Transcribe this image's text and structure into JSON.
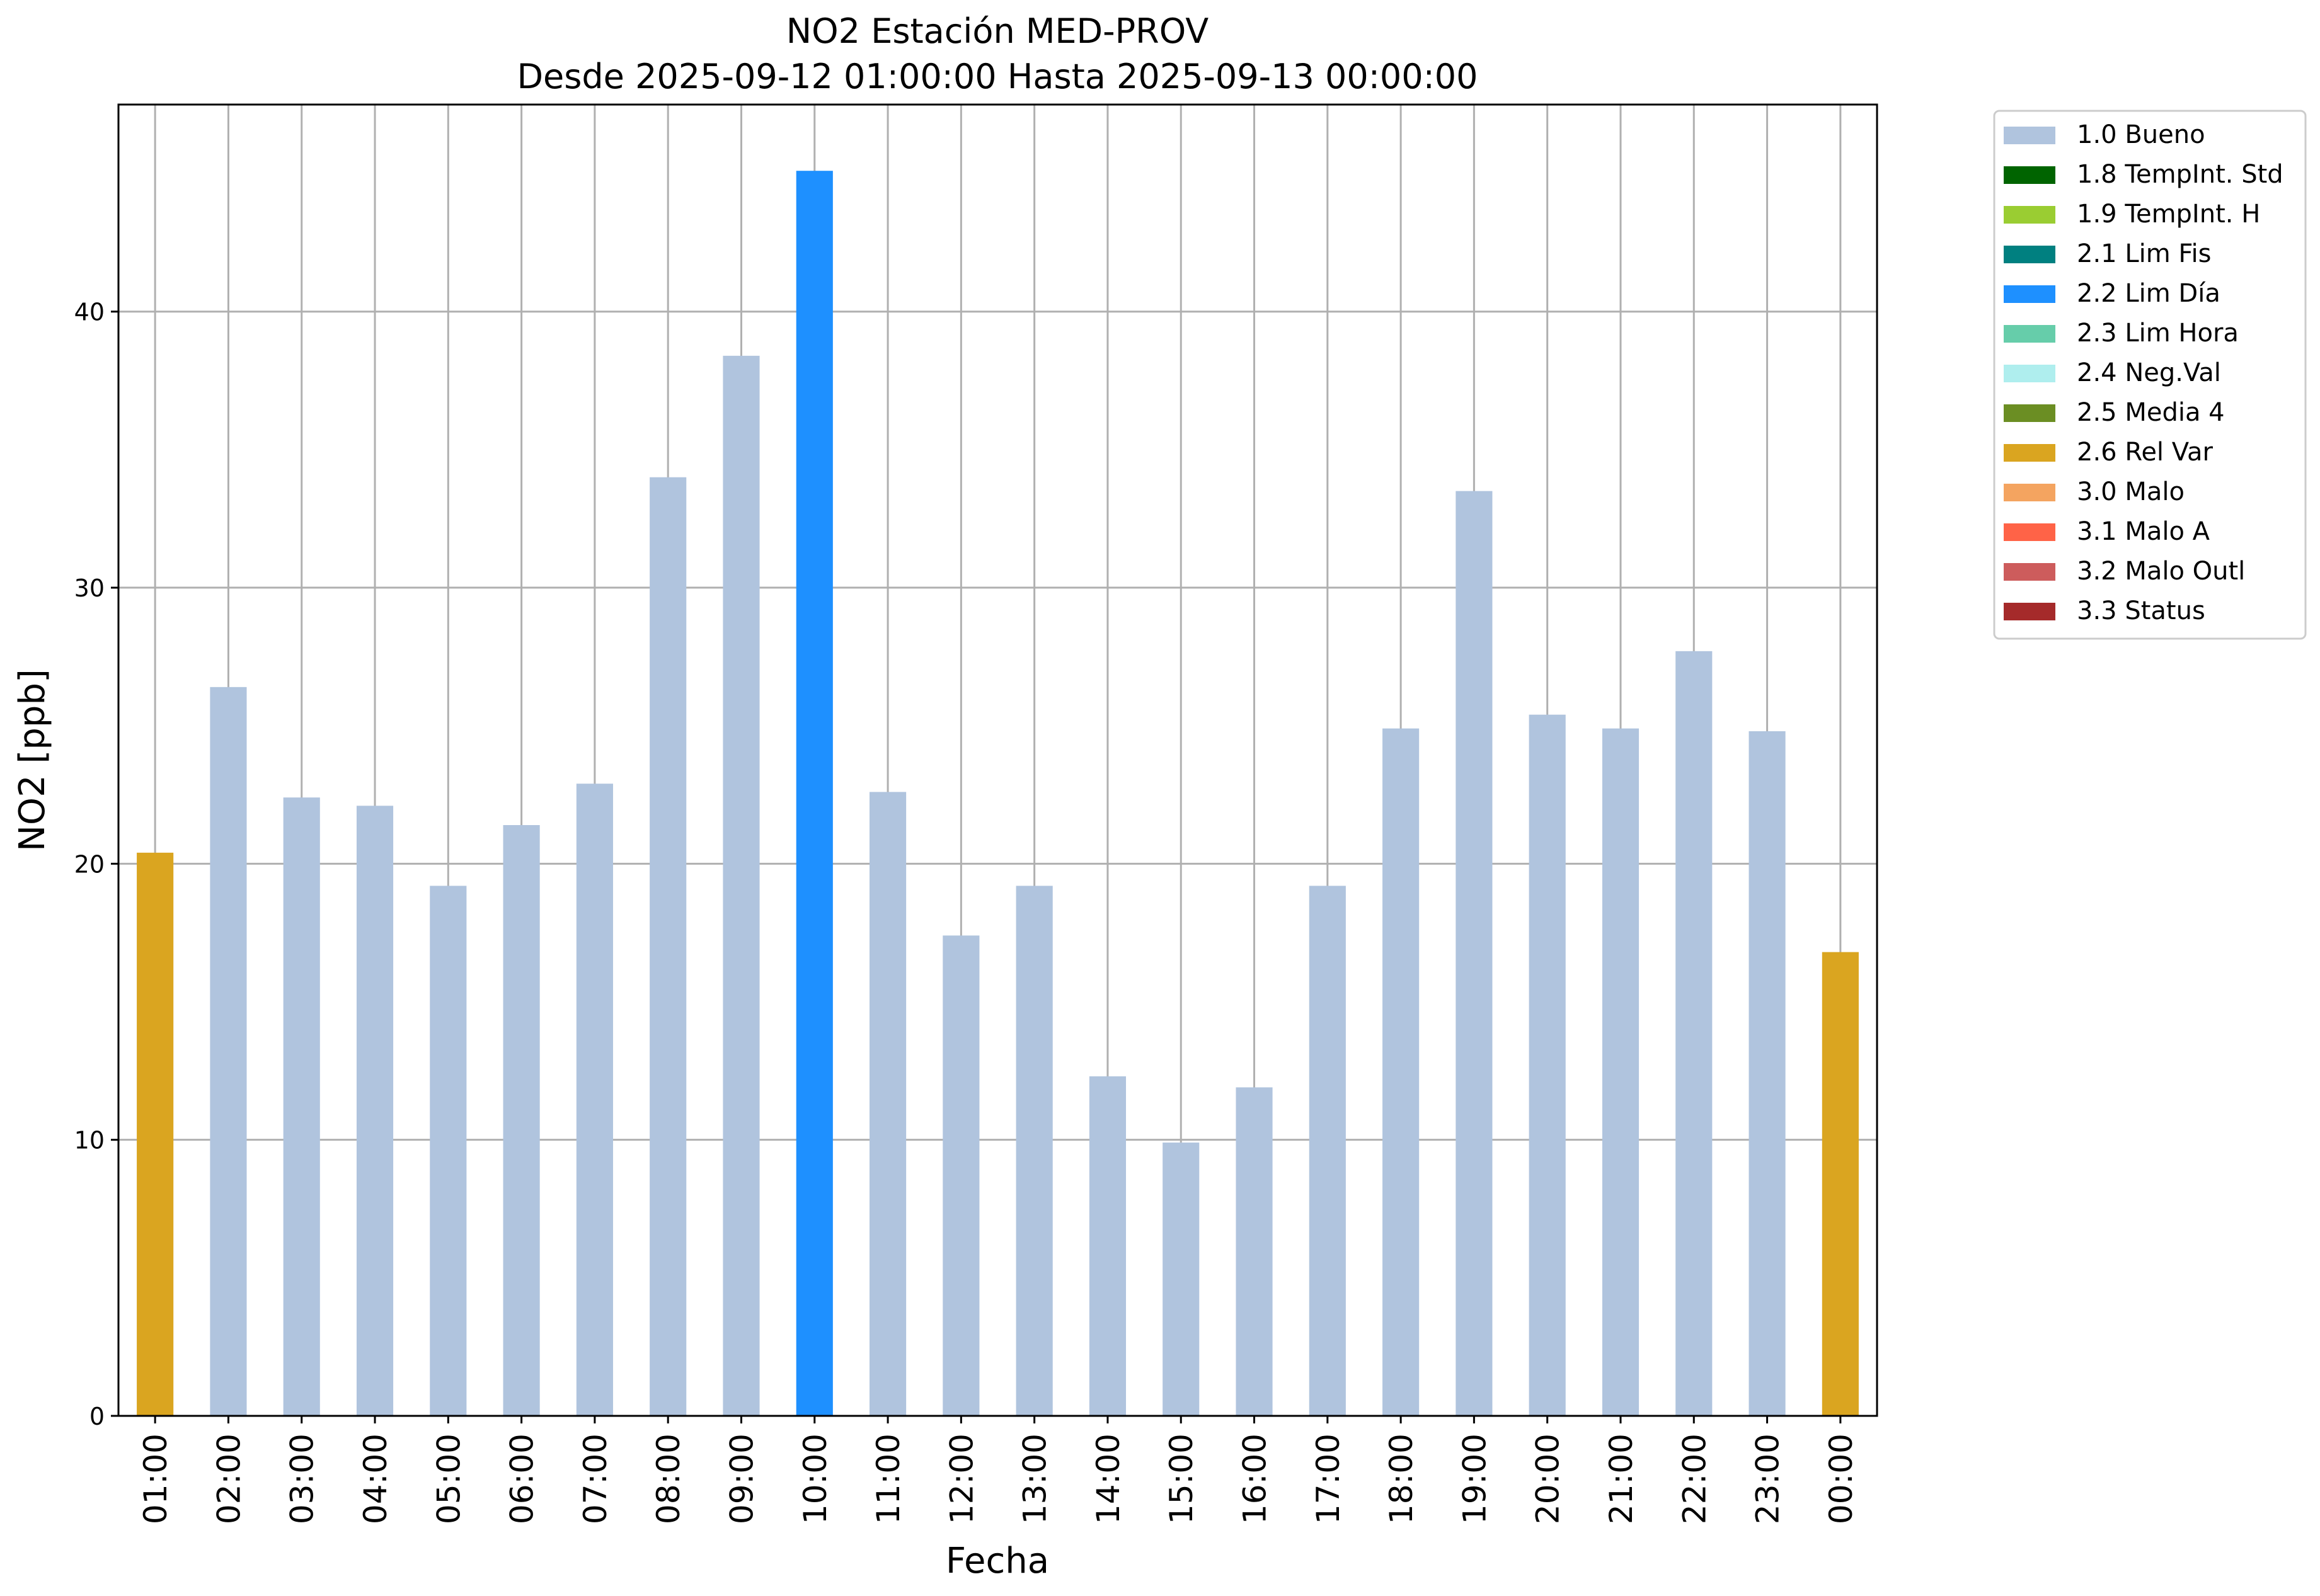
{
  "chart_data": {
    "type": "bar",
    "title": "NO2 Estación MED-PROV",
    "subtitle": "Desde 2025-09-12 01:00:00 Hasta 2025-09-13 00:00:00",
    "xlabel": "Fecha",
    "ylabel": "NO2 [ppb]",
    "ylim": [
      0,
      47.5
    ],
    "yticks": [
      0,
      10,
      20,
      30,
      40
    ],
    "grid": true,
    "legend_position": "outside-right",
    "categories": [
      "01:00",
      "02:00",
      "03:00",
      "04:00",
      "05:00",
      "06:00",
      "07:00",
      "08:00",
      "09:00",
      "10:00",
      "11:00",
      "12:00",
      "13:00",
      "14:00",
      "15:00",
      "16:00",
      "17:00",
      "18:00",
      "19:00",
      "20:00",
      "21:00",
      "22:00",
      "23:00",
      "00:00"
    ],
    "values": [
      20.4,
      26.4,
      22.4,
      22.1,
      19.2,
      21.4,
      22.9,
      34.0,
      38.4,
      45.1,
      22.6,
      17.4,
      19.2,
      12.3,
      9.9,
      11.9,
      19.2,
      24.9,
      33.5,
      25.4,
      24.9,
      27.7,
      24.8,
      16.8
    ],
    "flags": [
      "2.6 Rel Var",
      "1.0 Bueno",
      "1.0 Bueno",
      "1.0 Bueno",
      "1.0 Bueno",
      "1.0 Bueno",
      "1.0 Bueno",
      "1.0 Bueno",
      "1.0 Bueno",
      "2.2 Lim Día",
      "1.0 Bueno",
      "1.0 Bueno",
      "1.0 Bueno",
      "1.0 Bueno",
      "1.0 Bueno",
      "1.0 Bueno",
      "1.0 Bueno",
      "1.0 Bueno",
      "1.0 Bueno",
      "1.0 Bueno",
      "1.0 Bueno",
      "1.0 Bueno",
      "1.0 Bueno",
      "2.6 Rel Var"
    ],
    "legend": [
      {
        "label": "1.0 Bueno",
        "color": "#b0c4de"
      },
      {
        "label": "1.8 TempInt. Std",
        "color": "#006400"
      },
      {
        "label": "1.9 TempInt. H",
        "color": "#9acd32"
      },
      {
        "label": "2.1 Lim Fis",
        "color": "#008080"
      },
      {
        "label": "2.2 Lim Día",
        "color": "#1e90ff"
      },
      {
        "label": "2.3 Lim Hora",
        "color": "#66cdaa"
      },
      {
        "label": "2.4 Neg.Val",
        "color": "#afeeee"
      },
      {
        "label": "2.5 Media 4",
        "color": "#6b8e23"
      },
      {
        "label": "2.6 Rel Var",
        "color": "#daa520"
      },
      {
        "label": "3.0 Malo",
        "color": "#f4a460"
      },
      {
        "label": "3.1 Malo A",
        "color": "#ff6347"
      },
      {
        "label": "3.2 Malo Outl",
        "color": "#cd5c5c"
      },
      {
        "label": "3.3 Status",
        "color": "#a52a2a"
      }
    ]
  }
}
